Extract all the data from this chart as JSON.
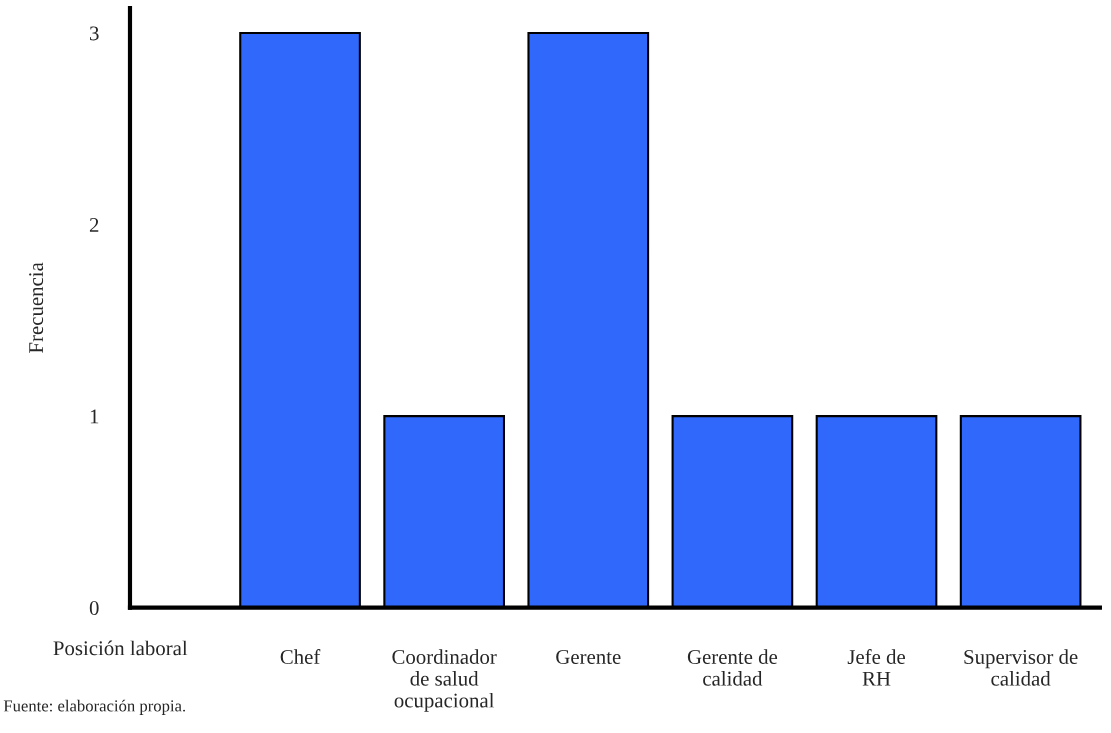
{
  "chart_data": {
    "type": "bar",
    "categories": [
      "Chef",
      "Coordinador\nde salud\nocupacional",
      "Gerente",
      "Gerente de\ncalidad",
      "Jefe de\nRH",
      "Supervisor de\ncalidad"
    ],
    "values": [
      3,
      1,
      3,
      1,
      1,
      1
    ],
    "color": "#2f68fa",
    "xlabel": "Posición laboral",
    "ylabel": "Frecuencia",
    "ylim": [
      0,
      3.13
    ],
    "yticks": [
      0,
      1,
      2,
      3
    ],
    "grid": false,
    "annotations": [
      "Fuente: elaboración propia."
    ]
  }
}
